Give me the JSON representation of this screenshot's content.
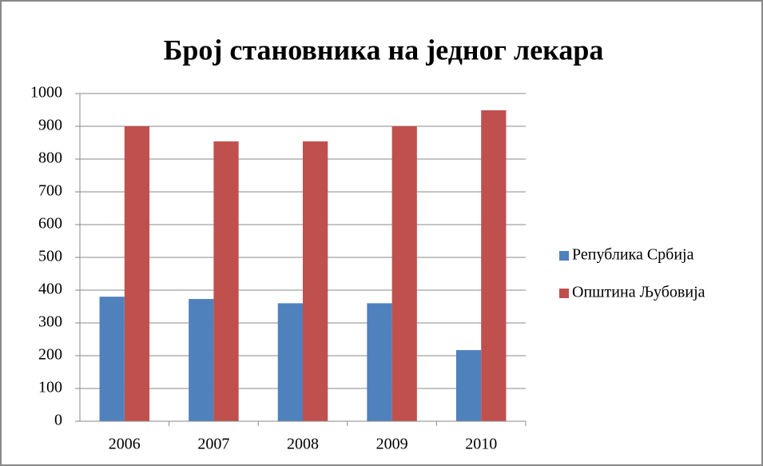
{
  "chart_data": {
    "type": "bar",
    "title": "Број становника на једног лекара",
    "categories": [
      "2006",
      "2007",
      "2008",
      "2009",
      "2010"
    ],
    "series": [
      {
        "name": "Република Србија",
        "color": "#4f81bd",
        "values": [
          380,
          373,
          360,
          360,
          217
        ]
      },
      {
        "name": "Општина Љубовија",
        "color": "#c0504d",
        "values": [
          900,
          854,
          854,
          900,
          949
        ]
      }
    ],
    "ylim": [
      0,
      1000
    ],
    "yticks": [
      0,
      100,
      200,
      300,
      400,
      500,
      600,
      700,
      800,
      900,
      1000
    ],
    "grid": true,
    "legend": "right"
  }
}
